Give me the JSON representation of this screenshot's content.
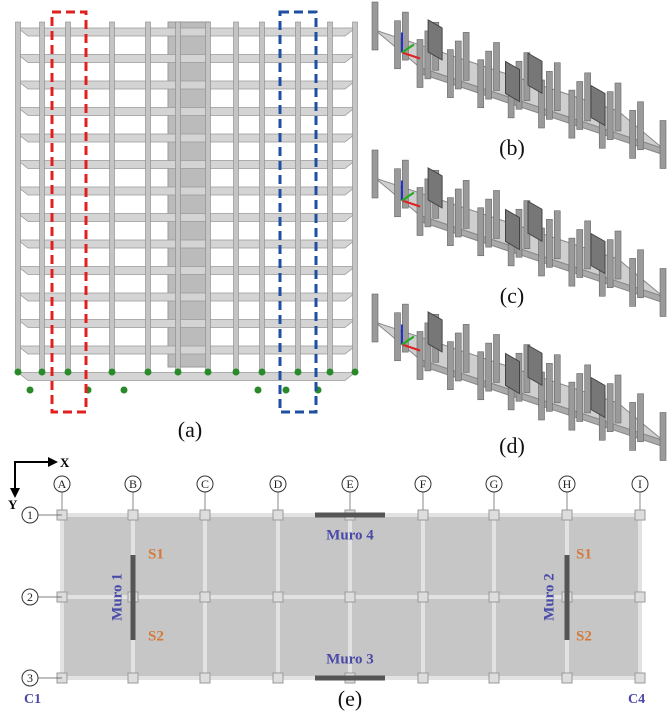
{
  "panels": {
    "a": "(a)",
    "b": "(b)",
    "c": "(c)",
    "d": "(d)",
    "e": "(e)"
  },
  "plan": {
    "axes": {
      "x": "X",
      "y": "Y"
    },
    "grid_columns": [
      "A",
      "B",
      "C",
      "D",
      "E",
      "F",
      "G",
      "H",
      "I"
    ],
    "grid_rows": [
      "1",
      "2",
      "3"
    ],
    "walls": [
      "Muro 1",
      "Muro 2",
      "Muro 3",
      "Muro 4"
    ],
    "sections": [
      "S1",
      "S2",
      "S1",
      "S2"
    ],
    "corners": [
      "C1",
      "C4"
    ]
  }
}
